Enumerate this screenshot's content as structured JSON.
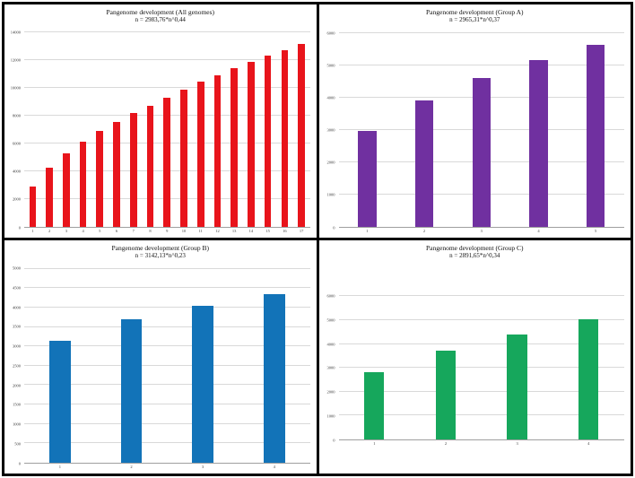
{
  "figure": {
    "frame_color": "#000000",
    "background": "#ffffff",
    "layout": "2x2 grid of bar charts"
  },
  "chart_data": [
    {
      "id": "all-genomes",
      "type": "bar",
      "title": "Pangenome development (All genomes)",
      "formula": "n = 2983,76*n^0,44",
      "bar_color": "#e8141b",
      "categories": [
        "1",
        "2",
        "3",
        "4",
        "5",
        "6",
        "7",
        "8",
        "9",
        "10",
        "11",
        "12",
        "13",
        "14",
        "15",
        "16",
        "17"
      ],
      "values": [
        2920,
        4270,
        5270,
        6150,
        6900,
        7560,
        8190,
        8750,
        9330,
        9900,
        10440,
        10940,
        11420,
        11920,
        12330,
        12750,
        13210
      ],
      "yticks": [
        0,
        2000,
        4000,
        6000,
        8000,
        10000,
        12000,
        14000
      ],
      "ymax_axis": 14400,
      "xlabel": "",
      "ylabel": "",
      "grid": true,
      "legend": "none",
      "bar_fraction": 0.41
    },
    {
      "id": "group-a",
      "type": "bar",
      "title": "Pangenome development (Group A)",
      "formula": "n = 2965,31*n^0,37",
      "bar_color": "#7030a0",
      "categories": [
        "1",
        "2",
        "3",
        "4",
        "5"
      ],
      "values": [
        2970,
        3930,
        4620,
        5170,
        5660
      ],
      "yticks": [
        0,
        1000,
        2000,
        3000,
        4000,
        5000,
        6000
      ],
      "ymax_axis": 6200,
      "xlabel": "",
      "ylabel": "",
      "grid": true,
      "legend": "none",
      "bar_fraction": 0.32
    },
    {
      "id": "group-b",
      "type": "bar",
      "title": "Pangenome development (Group B)",
      "formula": "n = 3142,13*n^0,23",
      "bar_color": "#1273b8",
      "categories": [
        "1",
        "2",
        "3",
        "4"
      ],
      "values": [
        3140,
        3690,
        4050,
        4340
      ],
      "yticks": [
        0,
        500,
        1000,
        1500,
        2000,
        2500,
        3000,
        3500,
        4000,
        4500,
        5000
      ],
      "ymax_axis": 5150,
      "xlabel": "",
      "ylabel": "",
      "grid": true,
      "legend": "none",
      "bar_fraction": 0.3
    },
    {
      "id": "group-c",
      "type": "bar",
      "title": "Pangenome development (Group C)",
      "formula": "n = 2891,65*n^0,34",
      "bar_color": "#16a75c",
      "categories": [
        "1",
        "2",
        "3",
        "4"
      ],
      "values": [
        2820,
        3730,
        4410,
        5020
      ],
      "yticks": [
        0,
        1000,
        2000,
        3000,
        4000,
        5000,
        6000
      ],
      "ymax_axis": 7400,
      "xlabel": "",
      "ylabel": "",
      "grid": true,
      "legend": "none",
      "bar_fraction": 0.28
    }
  ]
}
